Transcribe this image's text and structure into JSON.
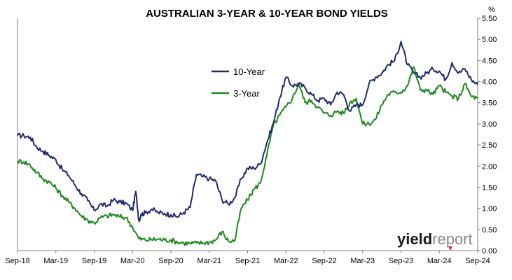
{
  "brand": {
    "name_part1": "yield",
    "name_part2": "report",
    "color_part1": "#1a1a1a",
    "color_part2": "#8a8a8a",
    "accent_color": "#c0392b"
  },
  "chart_data": {
    "type": "line",
    "title": "AUSTRALIAN 3-YEAR & 10-YEAR BOND YIELDS",
    "xlabel": "",
    "ylabel": "%",
    "ylim": [
      0,
      5.5
    ],
    "yticks": [
      "0.00",
      "0.50",
      "1.00",
      "1.50",
      "2.00",
      "2.50",
      "3.00",
      "3.50",
      "4.00",
      "4.50",
      "5.00",
      "5.50"
    ],
    "xticks": [
      "Sep-18",
      "Mar-19",
      "Sep-19",
      "Mar-20",
      "Sep-20",
      "Mar-21",
      "Sep-21",
      "Mar-22",
      "Sep-22",
      "Mar-23",
      "Sep-23",
      "Mar-24",
      "Sep-24"
    ],
    "x_range_months": [
      0,
      72
    ],
    "grid": false,
    "legend_position": "upper-middle",
    "series": [
      {
        "name": "10-Year",
        "color": "#1f2a6b",
        "x": [
          0,
          1,
          2,
          3,
          4,
          5,
          6,
          7,
          8,
          9,
          10,
          11,
          12,
          13,
          14,
          15,
          16,
          17,
          18,
          18.5,
          19,
          19.3,
          20,
          21,
          22,
          23,
          24,
          25,
          26,
          27,
          28,
          29,
          30,
          31,
          32,
          33,
          34,
          35,
          36,
          37,
          38,
          39,
          40,
          41,
          42,
          43,
          44,
          45,
          46,
          47,
          48,
          49,
          50,
          51,
          52,
          53,
          54,
          55,
          56,
          57,
          58,
          59,
          60,
          61,
          62,
          63,
          64,
          65,
          66,
          67,
          68,
          69,
          70,
          71,
          72
        ],
        "y": [
          2.72,
          2.72,
          2.68,
          2.45,
          2.35,
          2.25,
          2.15,
          1.92,
          1.78,
          1.55,
          1.35,
          1.18,
          0.95,
          1.1,
          1.05,
          1.2,
          1.15,
          1.12,
          0.95,
          1.4,
          0.7,
          0.85,
          0.9,
          0.98,
          0.9,
          0.88,
          0.85,
          0.8,
          0.9,
          1.02,
          1.8,
          1.75,
          1.7,
          1.65,
          1.2,
          1.1,
          1.25,
          1.7,
          1.95,
          1.95,
          2.05,
          2.55,
          3.0,
          3.6,
          4.1,
          3.9,
          3.95,
          3.85,
          3.7,
          3.55,
          3.6,
          3.45,
          3.75,
          3.7,
          3.3,
          3.45,
          3.45,
          3.95,
          4.1,
          4.2,
          4.4,
          4.5,
          4.95,
          4.4,
          4.2,
          4.1,
          4.2,
          4.3,
          4.25,
          4.05,
          4.45,
          4.2,
          4.3,
          4.05,
          3.92
        ]
      },
      {
        "name": "3-Year",
        "color": "#1a8a1a",
        "x": [
          0,
          1,
          2,
          3,
          4,
          5,
          6,
          7,
          8,
          9,
          10,
          11,
          12,
          13,
          14,
          15,
          16,
          17,
          18,
          19,
          20,
          21,
          22,
          23,
          24,
          25,
          26,
          27,
          28,
          29,
          30,
          31,
          32,
          33,
          34,
          35,
          36,
          37,
          38,
          39,
          40,
          41,
          42,
          43,
          44,
          45,
          46,
          47,
          48,
          49,
          50,
          51,
          52,
          53,
          54,
          55,
          56,
          57,
          58,
          59,
          60,
          61,
          62,
          63,
          64,
          65,
          66,
          67,
          68,
          69,
          70,
          71,
          72
        ],
        "y": [
          2.12,
          2.1,
          2.02,
          1.85,
          1.7,
          1.62,
          1.48,
          1.3,
          1.15,
          1.0,
          0.82,
          0.72,
          0.65,
          0.78,
          0.82,
          0.85,
          0.8,
          0.78,
          0.55,
          0.28,
          0.25,
          0.26,
          0.27,
          0.25,
          0.25,
          0.2,
          0.18,
          0.17,
          0.18,
          0.18,
          0.2,
          0.25,
          0.45,
          0.22,
          0.24,
          1.0,
          1.2,
          1.45,
          1.6,
          2.25,
          2.95,
          3.2,
          3.4,
          3.6,
          3.95,
          3.5,
          3.55,
          3.4,
          3.25,
          3.2,
          3.3,
          3.25,
          3.5,
          3.6,
          3.0,
          3.0,
          3.1,
          3.45,
          3.7,
          3.75,
          3.75,
          3.9,
          4.35,
          3.8,
          3.8,
          3.7,
          3.9,
          3.75,
          3.65,
          3.6,
          3.95,
          3.65,
          3.6
        ]
      }
    ]
  }
}
